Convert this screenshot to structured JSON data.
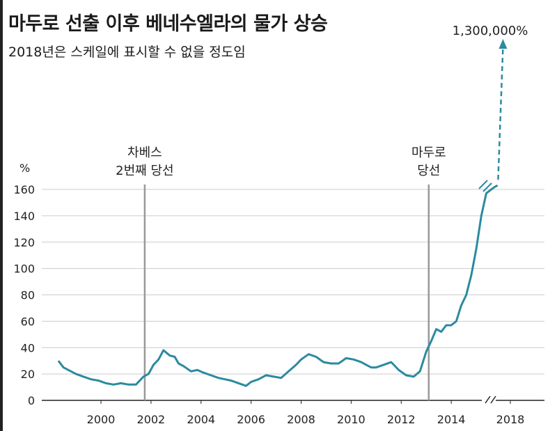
{
  "title": "마두로 선출 이후 베네수엘라의 물가 상승",
  "subtitle": "2018년은 스케일에 표시할 수 없을 정도임",
  "colors": {
    "series": "#2b8a9f",
    "grid": "#cccccc",
    "axis": "#222222",
    "vline": "#999999"
  },
  "chart_data": {
    "type": "line",
    "title": "마두로 선출 이후 베네수엘라의 물가 상승",
    "subtitle": "2018년은 스케일에 표시할 수 없을 정도임",
    "ylabel": "%",
    "xlabel": "",
    "xlim": [
      1998,
      2019.3
    ],
    "ylim": [
      0,
      160
    ],
    "yticks": [
      0,
      20,
      40,
      60,
      80,
      100,
      120,
      140,
      160
    ],
    "xticks": [
      2000,
      2002,
      2004,
      2006,
      2008,
      2010,
      2012,
      2014,
      2018
    ],
    "grid": "horizontal",
    "axis_break": "between 2016 and 2018",
    "series": [
      {
        "name": "",
        "x": [
          1998.3,
          1998.5,
          1998.7,
          1999.0,
          1999.3,
          1999.6,
          1999.9,
          2000.2,
          2000.5,
          2000.8,
          2001.1,
          2001.4,
          2001.7,
          2001.9,
          2002.1,
          2002.3,
          2002.5,
          2002.75,
          2002.95,
          2003.1,
          2003.3,
          2003.6,
          2003.85,
          2004.1,
          2004.4,
          2004.7,
          2004.95,
          2005.2,
          2005.5,
          2005.8,
          2006.0,
          2006.3,
          2006.6,
          2006.9,
          2007.2,
          2007.5,
          2007.8,
          2008.0,
          2008.3,
          2008.6,
          2008.9,
          2009.2,
          2009.5,
          2009.8,
          2010.1,
          2010.4,
          2010.6,
          2010.8,
          2011.0,
          2011.3,
          2011.6,
          2011.9,
          2012.2,
          2012.5,
          2012.75,
          2013.0,
          2013.2,
          2013.4,
          2013.6,
          2013.8,
          2014.0,
          2014.2,
          2014.4,
          2014.6,
          2014.8,
          2015.0,
          2015.2,
          2015.4,
          2015.6,
          2015.75,
          2015.85
        ],
        "values": [
          30,
          25,
          23,
          20,
          18,
          16,
          15,
          13,
          12,
          13,
          12,
          12,
          18,
          20,
          27,
          31,
          38,
          34,
          33,
          28,
          26,
          22,
          23,
          21,
          19,
          17,
          16,
          15,
          13,
          11,
          14,
          16,
          19,
          18,
          17,
          22,
          27,
          31,
          35,
          33,
          29,
          28,
          28,
          32,
          31,
          29,
          27,
          25,
          25,
          27,
          29,
          23,
          19,
          18,
          22,
          37,
          45,
          54,
          52,
          57,
          57,
          60,
          72,
          80,
          95,
          115,
          140,
          157,
          160,
          162,
          163
        ]
      }
    ],
    "overflow_annotation": {
      "x": 2015.9,
      "value": "1,300,000%"
    },
    "annotations": [
      {
        "x": 2001.75,
        "lines": [
          "차베스",
          "2번째 당선"
        ]
      },
      {
        "x": 2013.1,
        "lines": [
          "마두로",
          "당선"
        ]
      }
    ]
  }
}
